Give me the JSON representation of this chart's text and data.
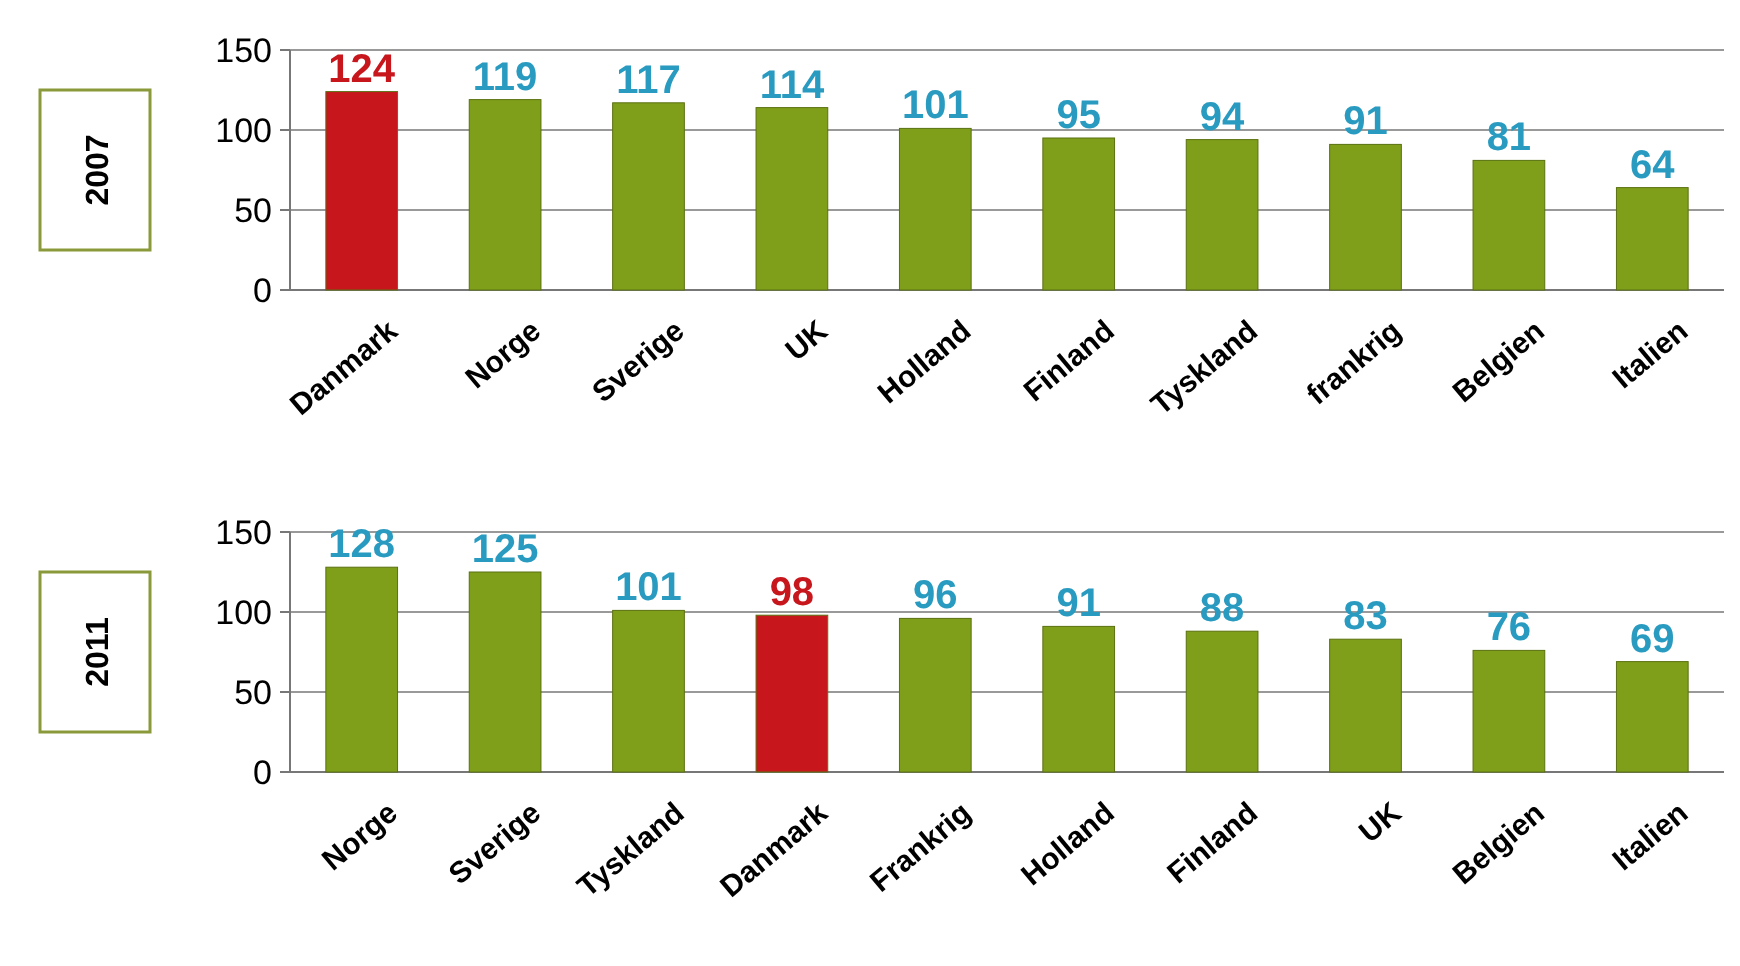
{
  "chart_data": [
    {
      "type": "bar",
      "title": "2007",
      "categories": [
        "Danmark",
        "Norge",
        "Sverige",
        "UK",
        "Holland",
        "Finland",
        "Tyskland",
        "frankrig",
        "Belgien",
        "Italien"
      ],
      "values": [
        124,
        119,
        117,
        114,
        101,
        95,
        94,
        91,
        81,
        64
      ],
      "colors": [
        "#c8161d",
        "#7f9f1a",
        "#7f9f1a",
        "#7f9f1a",
        "#7f9f1a",
        "#7f9f1a",
        "#7f9f1a",
        "#7f9f1a",
        "#7f9f1a",
        "#7f9f1a"
      ],
      "ylim": [
        0,
        150
      ],
      "yticks": [
        0,
        50,
        100,
        150
      ],
      "grid": "y",
      "data_labels": true
    },
    {
      "type": "bar",
      "title": "2011",
      "categories": [
        "Norge",
        "Sverige",
        "Tyskland",
        "Danmark",
        "Frankrig",
        "Holland",
        "Finland",
        "UK",
        "Belgien",
        "Italien"
      ],
      "values": [
        128,
        125,
        101,
        98,
        96,
        91,
        88,
        83,
        76,
        69
      ],
      "colors": [
        "#7f9f1a",
        "#7f9f1a",
        "#7f9f1a",
        "#c8161d",
        "#7f9f1a",
        "#7f9f1a",
        "#7f9f1a",
        "#7f9f1a",
        "#7f9f1a",
        "#7f9f1a"
      ],
      "ylim": [
        0,
        150
      ],
      "yticks": [
        0,
        50,
        100,
        150
      ],
      "grid": "y",
      "data_labels": true
    }
  ]
}
